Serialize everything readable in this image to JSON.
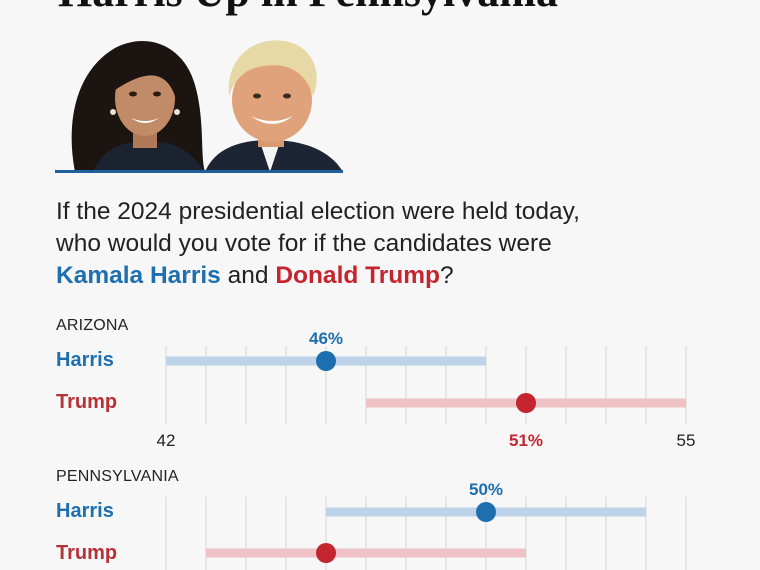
{
  "headline": "Harris Up in Pennsylvania",
  "question": {
    "line1": "If the 2024 presidential election were held today,",
    "line2": "who would you vote for if the candidates were",
    "harris_name": "Kamala Harris",
    "and_text": "and",
    "trump_name": "Donald Trump",
    "qmark": "?"
  },
  "colors": {
    "harris": "#1d6fb0",
    "harris_range": "#bcd3ea",
    "trump": "#c4252f",
    "trump_range": "#efc3c6"
  },
  "chart_data": [
    {
      "type": "dot-range",
      "title": "ARIZONA",
      "xlim": [
        42,
        55
      ],
      "tick_labels": [
        "42",
        "55"
      ],
      "series": [
        {
          "name": "Harris",
          "value": 46,
          "label": "46%",
          "range": [
            42,
            50
          ]
        },
        {
          "name": "Trump",
          "value": 51,
          "label": "51%",
          "range": [
            47,
            55
          ]
        }
      ]
    },
    {
      "type": "dot-range",
      "title": "PENNSYLVANIA",
      "xlim": [
        42,
        55
      ],
      "series": [
        {
          "name": "Harris",
          "value": 50,
          "label": "50%",
          "range": [
            46,
            54
          ]
        },
        {
          "name": "Trump",
          "value": 46,
          "label": "",
          "range": [
            43,
            51
          ]
        }
      ]
    }
  ]
}
